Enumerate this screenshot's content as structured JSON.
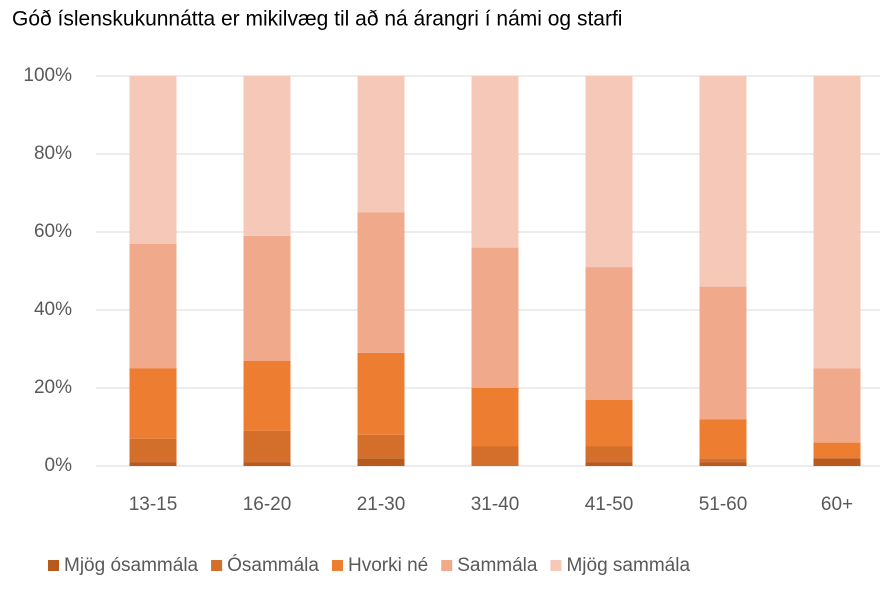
{
  "chart_data": {
    "type": "stacked_bar",
    "title": "Góð íslenskukunnátta er mikilvæg til að ná árangri í námi og starfi",
    "categories": [
      "13-15",
      "16-20",
      "21-30",
      "31-40",
      "41-50",
      "51-60",
      "60+"
    ],
    "series": [
      {
        "name": "Mjög ósammála",
        "color": "#b85a1e",
        "values": [
          1,
          1,
          2,
          0,
          1,
          1,
          2
        ]
      },
      {
        "name": "Ósammála",
        "color": "#d46f2b",
        "values": [
          6,
          8,
          6,
          5,
          4,
          1,
          0
        ]
      },
      {
        "name": "Hvorki né",
        "color": "#ed7d31",
        "values": [
          18,
          18,
          21,
          15,
          12,
          10,
          4
        ]
      },
      {
        "name": "Sammála",
        "color": "#f0a98a",
        "values": [
          32,
          32,
          36,
          36,
          34,
          34,
          19
        ]
      },
      {
        "name": "Mjög sammála",
        "color": "#f6c8b7",
        "values": [
          43,
          41,
          35,
          44,
          49,
          54,
          75
        ]
      }
    ],
    "ylim": [
      0,
      100
    ],
    "yticks": [
      {
        "value": 0,
        "label": "0%"
      },
      {
        "value": 20,
        "label": "20%"
      },
      {
        "value": 40,
        "label": "40%"
      },
      {
        "value": 60,
        "label": "60%"
      },
      {
        "value": 80,
        "label": "80%"
      },
      {
        "value": 100,
        "label": "100%"
      }
    ],
    "grid": true,
    "legend": "bottom"
  }
}
